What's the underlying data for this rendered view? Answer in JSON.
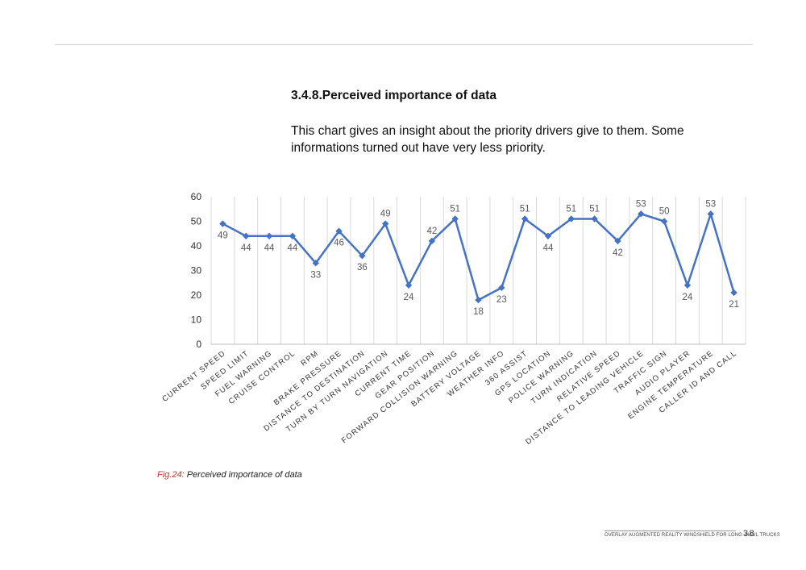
{
  "section": {
    "title": "3.4.8.Perceived importance of data",
    "intro": "This chart gives an insight about the priority drivers give to them. Some informations turned out have very less priority."
  },
  "chart_data": {
    "type": "line",
    "title": "",
    "xlabel": "",
    "ylabel": "",
    "ylim": [
      0,
      60
    ],
    "yticks": [
      0,
      10,
      20,
      30,
      40,
      50,
      60
    ],
    "grid": "vertical",
    "categories": [
      "CURRENT SPEED",
      "SPEED LIMIT",
      "FUEL WARNING",
      "CRUISE CONTROL",
      "RPM",
      "BRAKE PRESSURE",
      "DISTANCE TO DESTINATION",
      "TURN BY TURN NAVIGATION",
      "CURRENT TIME",
      "GEAR POSITION",
      "FORWARD COLLISION WARNING",
      "BATTERY VOLTAGE",
      "WEATHER INFO",
      "360 ASSIST",
      "GPS LOCATION",
      "POLICE WARNING",
      "TURN INDICATION",
      "RELATIVE SPEED",
      "DISTANCE TO LEADING VEHICLE",
      "TRAFFIC SIGN",
      "AUDIO PLAYER",
      "ENGINE TEMPERATURE",
      "CALLER ID AND CALL"
    ],
    "values": [
      49,
      44,
      44,
      44,
      33,
      46,
      36,
      49,
      24,
      42,
      51,
      18,
      23,
      51,
      44,
      51,
      51,
      42,
      53,
      50,
      24,
      53,
      21
    ],
    "label_pos": [
      "below",
      "below",
      "below",
      "below",
      "below",
      "below",
      "below",
      "above",
      "below",
      "above",
      "above",
      "below",
      "below",
      "above",
      "below",
      "above",
      "above",
      "below",
      "above",
      "above",
      "below",
      "above",
      "below"
    ],
    "series_color": "#4472c4"
  },
  "caption": {
    "fig": "Fig.24:",
    "text": " Perceived importance of data"
  },
  "footer": {
    "text": "OVERLAY AUGMENTED REALITY WINDSHIELD FOR LONG -HAUL TRUCKS",
    "page": "38"
  }
}
